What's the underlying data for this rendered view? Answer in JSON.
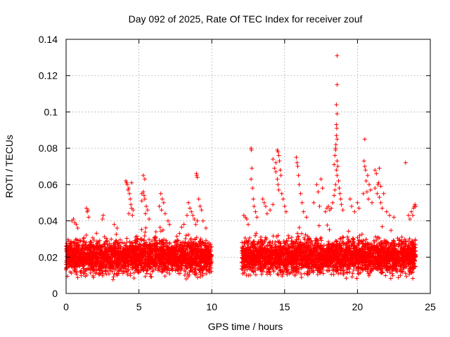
{
  "chart_data": {
    "type": "scatter",
    "title": "Day 092 of 2025, Rate Of TEC Index for receiver zouf",
    "xlabel": "GPS time / hours",
    "ylabel": "ROTI / TECUs",
    "xlim": [
      0,
      25
    ],
    "ylim": [
      0,
      0.14
    ],
    "xticks": [
      0,
      5,
      10,
      15,
      20,
      25
    ],
    "xtick_labels": [
      "0",
      "5",
      "10",
      "15",
      "20",
      "25"
    ],
    "yticks": [
      0,
      0.02,
      0.04,
      0.06,
      0.08,
      0.1,
      0.12,
      0.14
    ],
    "ytick_labels": [
      "0",
      "0.02",
      "0.04",
      "0.06",
      "0.08",
      "0.1",
      "0.12",
      "0.14"
    ],
    "grid": true,
    "marker": "+",
    "color": "#ff0000",
    "data_gap_hours": [
      10.0,
      12.0
    ],
    "series": [
      {
        "name": "ROTI",
        "points": [
          [
            0.4,
            0.04
          ],
          [
            0.5,
            0.041
          ],
          [
            0.6,
            0.039
          ],
          [
            0.7,
            0.038
          ],
          [
            0.8,
            0.036
          ],
          [
            1.4,
            0.047
          ],
          [
            1.45,
            0.045
          ],
          [
            1.5,
            0.046
          ],
          [
            1.55,
            0.042
          ],
          [
            2.5,
            0.041
          ],
          [
            2.55,
            0.043
          ],
          [
            3.3,
            0.038
          ],
          [
            3.5,
            0.036
          ],
          [
            4.1,
            0.062
          ],
          [
            4.15,
            0.061
          ],
          [
            4.2,
            0.06
          ],
          [
            4.3,
            0.058
          ],
          [
            4.35,
            0.055
          ],
          [
            4.4,
            0.052
          ],
          [
            4.45,
            0.049
          ],
          [
            4.5,
            0.047
          ],
          [
            4.3,
            0.044
          ],
          [
            4.55,
            0.043
          ],
          [
            4.6,
            0.046
          ],
          [
            4.25,
            0.057
          ],
          [
            4.5,
            0.061
          ],
          [
            5.3,
            0.065
          ],
          [
            5.4,
            0.063
          ],
          [
            5.2,
            0.055
          ],
          [
            5.3,
            0.056
          ],
          [
            5.35,
            0.054
          ],
          [
            5.4,
            0.052
          ],
          [
            5.5,
            0.048
          ],
          [
            5.6,
            0.046
          ],
          [
            5.45,
            0.044
          ],
          [
            5.7,
            0.041
          ],
          [
            5.2,
            0.051
          ],
          [
            6.5,
            0.055
          ],
          [
            6.6,
            0.052
          ],
          [
            6.7,
            0.05
          ],
          [
            6.4,
            0.048
          ],
          [
            6.55,
            0.046
          ],
          [
            6.8,
            0.044
          ],
          [
            7.0,
            0.04
          ],
          [
            7.1,
            0.038
          ],
          [
            8.4,
            0.05
          ],
          [
            8.5,
            0.047
          ],
          [
            8.6,
            0.045
          ],
          [
            8.7,
            0.043
          ],
          [
            8.8,
            0.041
          ],
          [
            9.1,
            0.052
          ],
          [
            9.2,
            0.048
          ],
          [
            9.3,
            0.046
          ],
          [
            9.0,
            0.04
          ],
          [
            8.3,
            0.043
          ],
          [
            9.4,
            0.04
          ],
          [
            8.9,
            0.038
          ],
          [
            9.6,
            0.036
          ],
          [
            8.95,
            0.066
          ],
          [
            8.97,
            0.065
          ],
          [
            9.0,
            0.064
          ],
          [
            12.2,
            0.043
          ],
          [
            12.3,
            0.042
          ],
          [
            12.4,
            0.041
          ],
          [
            12.5,
            0.038
          ],
          [
            12.7,
            0.08
          ],
          [
            12.72,
            0.079
          ],
          [
            12.75,
            0.069
          ],
          [
            12.8,
            0.058
          ],
          [
            12.85,
            0.052
          ],
          [
            12.9,
            0.048
          ],
          [
            13.0,
            0.045
          ],
          [
            13.1,
            0.042
          ],
          [
            12.7,
            0.063
          ],
          [
            13.5,
            0.052
          ],
          [
            13.6,
            0.05
          ],
          [
            13.7,
            0.048
          ],
          [
            13.8,
            0.044
          ],
          [
            14.0,
            0.046
          ],
          [
            14.2,
            0.049
          ],
          [
            14.2,
            0.074
          ],
          [
            14.3,
            0.069
          ],
          [
            14.4,
            0.067
          ],
          [
            14.5,
            0.063
          ],
          [
            14.55,
            0.06
          ],
          [
            14.6,
            0.057
          ],
          [
            14.5,
            0.079
          ],
          [
            14.55,
            0.078
          ],
          [
            14.6,
            0.076
          ],
          [
            14.7,
            0.068
          ],
          [
            14.65,
            0.073
          ],
          [
            14.4,
            0.072
          ],
          [
            14.75,
            0.065
          ],
          [
            14.8,
            0.055
          ],
          [
            14.9,
            0.052
          ],
          [
            15.0,
            0.048
          ],
          [
            15.1,
            0.045
          ],
          [
            15.8,
            0.075
          ],
          [
            15.85,
            0.072
          ],
          [
            15.9,
            0.07
          ],
          [
            15.95,
            0.065
          ],
          [
            16.0,
            0.06
          ],
          [
            16.1,
            0.055
          ],
          [
            16.2,
            0.05
          ],
          [
            16.3,
            0.045
          ],
          [
            16.5,
            0.042
          ],
          [
            17.2,
            0.06
          ],
          [
            17.3,
            0.056
          ],
          [
            17.0,
            0.05
          ],
          [
            17.5,
            0.063
          ],
          [
            17.6,
            0.058
          ],
          [
            17.4,
            0.048
          ],
          [
            17.8,
            0.045
          ],
          [
            17.9,
            0.047
          ],
          [
            18.4,
            0.071
          ],
          [
            18.5,
            0.08
          ],
          [
            18.52,
            0.082
          ],
          [
            18.55,
            0.087
          ],
          [
            18.6,
            0.085
          ],
          [
            18.5,
            0.079
          ],
          [
            18.45,
            0.076
          ],
          [
            18.6,
            0.073
          ],
          [
            18.65,
            0.07
          ],
          [
            18.55,
            0.068
          ],
          [
            18.6,
            0.065
          ],
          [
            18.7,
            0.062
          ],
          [
            18.75,
            0.058
          ],
          [
            18.8,
            0.055
          ],
          [
            18.5,
            0.06
          ],
          [
            18.45,
            0.057
          ],
          [
            18.4,
            0.054
          ],
          [
            18.85,
            0.052
          ],
          [
            18.9,
            0.049
          ],
          [
            18.3,
            0.05
          ],
          [
            18.2,
            0.047
          ],
          [
            18.1,
            0.046
          ],
          [
            18.0,
            0.048
          ],
          [
            19.0,
            0.046
          ],
          [
            18.6,
            0.131
          ],
          [
            18.6,
            0.115
          ],
          [
            18.55,
            0.104
          ],
          [
            18.6,
            0.099
          ],
          [
            18.55,
            0.093
          ],
          [
            18.58,
            0.091
          ],
          [
            19.5,
            0.052
          ],
          [
            19.6,
            0.048
          ],
          [
            19.8,
            0.045
          ],
          [
            20.0,
            0.05
          ],
          [
            20.1,
            0.047
          ],
          [
            20.5,
            0.085
          ],
          [
            20.45,
            0.073
          ],
          [
            20.5,
            0.07
          ],
          [
            20.55,
            0.068
          ],
          [
            20.6,
            0.062
          ],
          [
            20.7,
            0.065
          ],
          [
            20.8,
            0.06
          ],
          [
            20.9,
            0.057
          ],
          [
            20.4,
            0.055
          ],
          [
            20.65,
            0.056
          ],
          [
            20.75,
            0.052
          ],
          [
            21.0,
            0.05
          ],
          [
            21.2,
            0.068
          ],
          [
            21.3,
            0.066
          ],
          [
            21.5,
            0.069
          ],
          [
            21.4,
            0.06
          ],
          [
            21.2,
            0.058
          ],
          [
            21.35,
            0.055
          ],
          [
            21.5,
            0.053
          ],
          [
            21.6,
            0.05
          ],
          [
            21.7,
            0.047
          ],
          [
            21.45,
            0.061
          ],
          [
            21.6,
            0.059
          ],
          [
            21.8,
            0.055
          ],
          [
            22.0,
            0.045
          ],
          [
            22.2,
            0.043
          ],
          [
            22.5,
            0.042
          ],
          [
            23.3,
            0.072
          ],
          [
            23.5,
            0.043
          ],
          [
            23.6,
            0.041
          ],
          [
            23.7,
            0.045
          ],
          [
            23.8,
            0.043
          ],
          [
            23.9,
            0.048
          ],
          [
            23.95,
            0.049
          ],
          [
            23.85,
            0.047
          ],
          [
            24.0,
            0.048
          ]
        ]
      }
    ],
    "dense_band_segments": [
      {
        "from_hour": 0.0,
        "to_hour": 10.0,
        "seed": 92
      },
      {
        "from_hour": 12.05,
        "to_hour": 24.0,
        "seed": 2025
      }
    ]
  }
}
